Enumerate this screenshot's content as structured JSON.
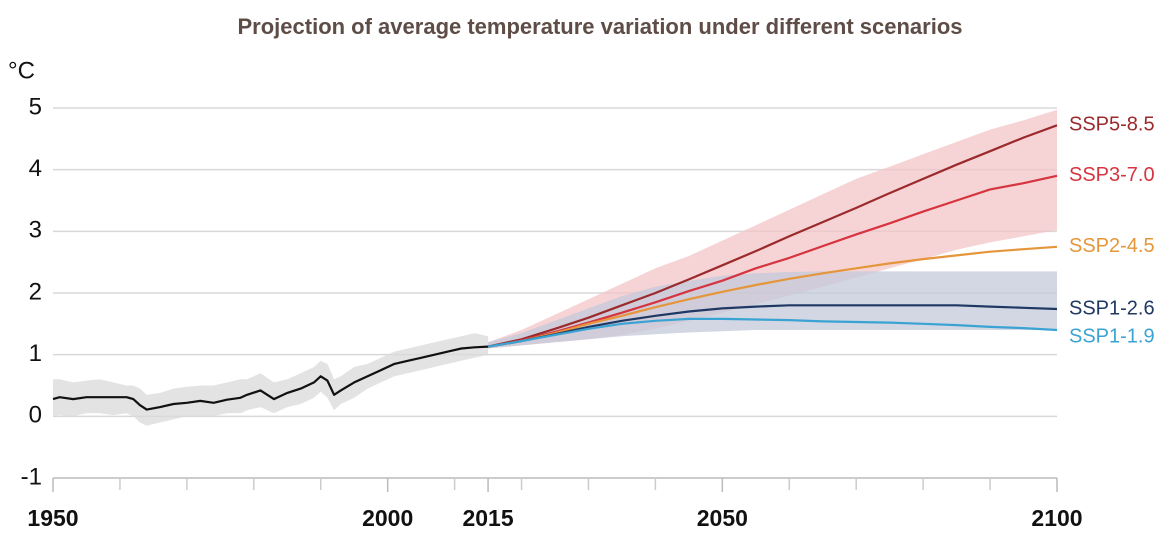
{
  "chart_data": {
    "type": "line",
    "title": "Projection of average temperature variation under different scenarios",
    "y_label": "°C",
    "xlim": [
      1950,
      2100
    ],
    "xticks": [
      1950,
      2000,
      2015,
      2050,
      2100
    ],
    "x_minor_ticks": [
      1960,
      1970,
      1980,
      1990,
      2010,
      2020,
      2030,
      2040,
      2060,
      2070,
      2080,
      2090
    ],
    "ylim": [
      -1,
      5
    ],
    "yticks": [
      -1,
      0,
      1,
      2,
      3,
      4,
      5
    ],
    "grid": true,
    "bands": [
      {
        "color": "#d9d9d9",
        "x": [
          1950,
          1951,
          1953,
          1955,
          1957,
          1959,
          1961,
          1962,
          1963,
          1964,
          1966,
          1968,
          1970,
          1972,
          1974,
          1976,
          1978,
          1979,
          1981,
          1983,
          1985,
          1987,
          1989,
          1990,
          1991,
          1992,
          1993,
          1995,
          1997,
          1999,
          2001,
          2003,
          2005,
          2007,
          2009,
          2011,
          2013,
          2015
        ],
        "lower": [
          0.0,
          0.02,
          0.0,
          0.05,
          0.05,
          0.02,
          0.05,
          0.0,
          -0.1,
          -0.15,
          -0.1,
          -0.05,
          0.0,
          0.0,
          0.0,
          0.05,
          0.05,
          0.1,
          0.15,
          0.05,
          0.15,
          0.2,
          0.3,
          0.4,
          0.3,
          0.1,
          0.2,
          0.3,
          0.45,
          0.55,
          0.65,
          0.7,
          0.75,
          0.8,
          0.85,
          0.9,
          0.95,
          1.0
        ],
        "upper": [
          0.6,
          0.6,
          0.55,
          0.58,
          0.6,
          0.55,
          0.5,
          0.5,
          0.45,
          0.35,
          0.38,
          0.45,
          0.48,
          0.5,
          0.5,
          0.55,
          0.6,
          0.6,
          0.7,
          0.55,
          0.6,
          0.7,
          0.8,
          0.9,
          0.85,
          0.6,
          0.65,
          0.8,
          0.85,
          0.95,
          1.05,
          1.1,
          1.15,
          1.2,
          1.25,
          1.3,
          1.35,
          1.3
        ]
      },
      {
        "color": "#f3c4c7",
        "x": [
          2015,
          2020,
          2025,
          2030,
          2035,
          2040,
          2045,
          2050,
          2055,
          2060,
          2065,
          2070,
          2075,
          2080,
          2085,
          2090,
          2095,
          2100
        ],
        "lower": [
          1.1,
          1.15,
          1.2,
          1.25,
          1.32,
          1.42,
          1.55,
          1.68,
          1.82,
          1.96,
          2.1,
          2.25,
          2.4,
          2.55,
          2.7,
          2.82,
          2.92,
          3.02
        ],
        "upper": [
          1.2,
          1.4,
          1.65,
          1.9,
          2.15,
          2.4,
          2.6,
          2.85,
          3.1,
          3.35,
          3.6,
          3.85,
          4.05,
          4.25,
          4.45,
          4.65,
          4.8,
          4.97
        ]
      },
      {
        "color": "#c3cad9",
        "x": [
          2015,
          2020,
          2025,
          2030,
          2035,
          2040,
          2045,
          2050,
          2055,
          2060,
          2065,
          2070,
          2075,
          2080,
          2085,
          2090,
          2095,
          2100
        ],
        "lower": [
          1.1,
          1.15,
          1.2,
          1.25,
          1.3,
          1.33,
          1.36,
          1.38,
          1.4,
          1.4,
          1.4,
          1.4,
          1.4,
          1.4,
          1.4,
          1.4,
          1.4,
          1.4
        ],
        "upper": [
          1.2,
          1.35,
          1.55,
          1.75,
          1.95,
          2.1,
          2.2,
          2.28,
          2.32,
          2.34,
          2.35,
          2.35,
          2.35,
          2.35,
          2.35,
          2.35,
          2.35,
          2.35
        ]
      }
    ],
    "series": [
      {
        "color": "#111111",
        "x": [
          1950,
          1951,
          1953,
          1955,
          1957,
          1959,
          1961,
          1962,
          1963,
          1964,
          1966,
          1968,
          1970,
          1972,
          1974,
          1976,
          1978,
          1979,
          1981,
          1983,
          1985,
          1987,
          1989,
          1990,
          1991,
          1992,
          1993,
          1995,
          1997,
          1999,
          2001,
          2003,
          2005,
          2007,
          2009,
          2011,
          2013,
          2015
        ],
        "values": [
          0.28,
          0.31,
          0.28,
          0.31,
          0.31,
          0.31,
          0.31,
          0.28,
          0.18,
          0.11,
          0.15,
          0.2,
          0.22,
          0.25,
          0.22,
          0.27,
          0.3,
          0.35,
          0.42,
          0.28,
          0.38,
          0.45,
          0.55,
          0.65,
          0.58,
          0.35,
          0.42,
          0.55,
          0.65,
          0.75,
          0.85,
          0.9,
          0.95,
          1.0,
          1.05,
          1.1,
          1.12,
          1.13
        ]
      },
      {
        "name": "SSP5-8.5",
        "color": "#9b2a2d",
        "x": [
          2015,
          2020,
          2025,
          2030,
          2035,
          2040,
          2045,
          2050,
          2055,
          2060,
          2065,
          2070,
          2075,
          2080,
          2085,
          2090,
          2095,
          2100
        ],
        "values": [
          1.13,
          1.25,
          1.42,
          1.6,
          1.8,
          2.0,
          2.22,
          2.45,
          2.68,
          2.92,
          3.15,
          3.38,
          3.62,
          3.85,
          4.08,
          4.3,
          4.52,
          4.72
        ]
      },
      {
        "name": "SSP3-7.0",
        "color": "#d6343f",
        "x": [
          2015,
          2020,
          2025,
          2030,
          2035,
          2040,
          2045,
          2050,
          2055,
          2060,
          2065,
          2070,
          2075,
          2080,
          2085,
          2090,
          2095,
          2100
        ],
        "values": [
          1.13,
          1.23,
          1.37,
          1.52,
          1.68,
          1.85,
          2.03,
          2.2,
          2.4,
          2.57,
          2.76,
          2.95,
          3.13,
          3.32,
          3.5,
          3.68,
          3.78,
          3.9
        ]
      },
      {
        "name": "SSP2-4.5",
        "color": "#e5963a",
        "x": [
          2015,
          2020,
          2025,
          2030,
          2035,
          2040,
          2045,
          2050,
          2055,
          2060,
          2065,
          2070,
          2075,
          2080,
          2085,
          2090,
          2095,
          2100
        ],
        "values": [
          1.13,
          1.22,
          1.35,
          1.5,
          1.63,
          1.77,
          1.9,
          2.02,
          2.13,
          2.23,
          2.32,
          2.4,
          2.48,
          2.55,
          2.61,
          2.67,
          2.71,
          2.75
        ]
      },
      {
        "name": "SSP1-2.6",
        "color": "#1f3864",
        "x": [
          2015,
          2020,
          2025,
          2030,
          2035,
          2040,
          2045,
          2050,
          2055,
          2060,
          2065,
          2070,
          2075,
          2080,
          2085,
          2090,
          2095,
          2100
        ],
        "values": [
          1.13,
          1.22,
          1.33,
          1.45,
          1.55,
          1.63,
          1.7,
          1.75,
          1.78,
          1.8,
          1.8,
          1.8,
          1.8,
          1.8,
          1.8,
          1.78,
          1.76,
          1.74
        ]
      },
      {
        "name": "SSP1-1.9",
        "color": "#3ba3d3",
        "x": [
          2015,
          2020,
          2025,
          2030,
          2035,
          2040,
          2045,
          2050,
          2055,
          2060,
          2065,
          2070,
          2075,
          2080,
          2085,
          2090,
          2095,
          2100
        ],
        "values": [
          1.13,
          1.22,
          1.32,
          1.42,
          1.5,
          1.55,
          1.58,
          1.58,
          1.57,
          1.56,
          1.54,
          1.53,
          1.52,
          1.5,
          1.48,
          1.45,
          1.43,
          1.4
        ]
      }
    ]
  }
}
